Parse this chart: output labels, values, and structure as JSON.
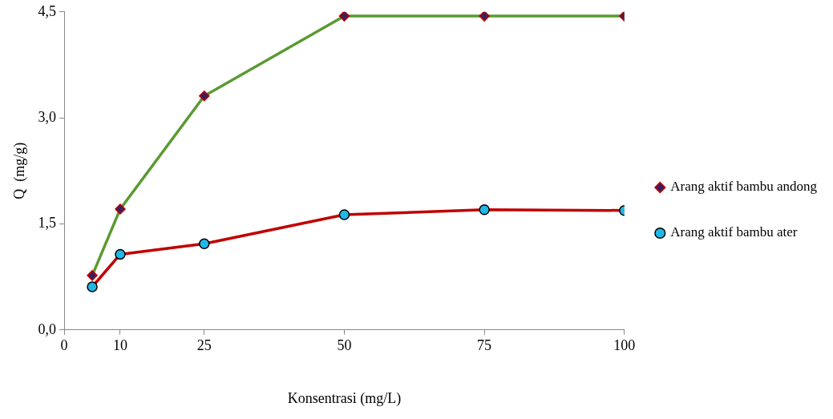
{
  "chart_data": {
    "type": "line",
    "xlabel": "Konsentrasi (mg/L)",
    "ylabel": "Q  (mg/g)",
    "xlim": [
      0,
      100
    ],
    "xticks": [
      0,
      10,
      25,
      50,
      75,
      100
    ],
    "ylim": [
      0,
      4.5
    ],
    "yticks": [
      {
        "value": 0,
        "label": "0,0"
      },
      {
        "value": 1.5,
        "label": "1,5"
      },
      {
        "value": 3,
        "label": "3,0"
      },
      {
        "value": 4.5,
        "label": "4,5"
      }
    ],
    "x": [
      5,
      10,
      25,
      50,
      75,
      100
    ],
    "series": [
      {
        "name": "Arang aktif bambu andong",
        "color": "#5a9a32",
        "marker": "diamond",
        "values": [
          0.77,
          1.71,
          3.31,
          4.44,
          4.44,
          4.44
        ]
      },
      {
        "name": "Arang aktif bambu ater",
        "color": "#c00000",
        "marker": "circle",
        "values": [
          0.61,
          1.07,
          1.22,
          1.63,
          1.7,
          1.69
        ]
      }
    ],
    "grid": false,
    "legend": "right"
  }
}
